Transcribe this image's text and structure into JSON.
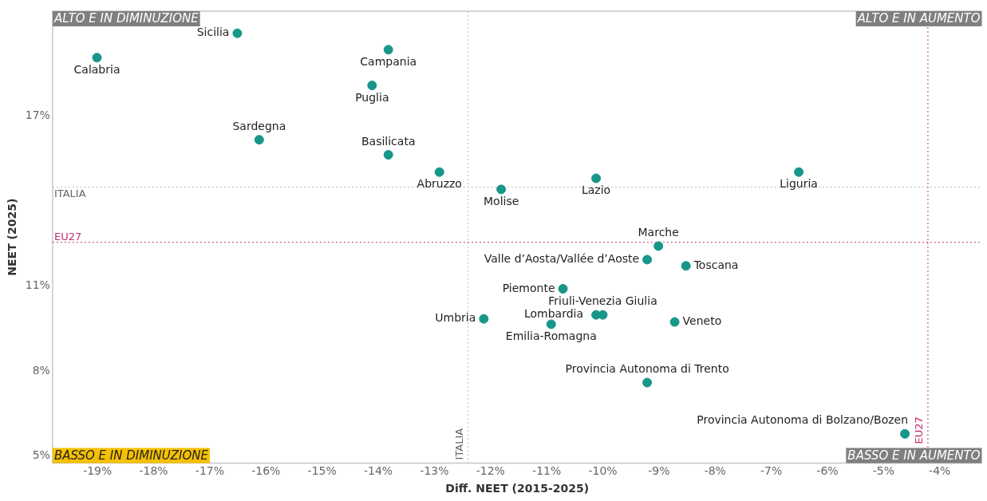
{
  "chart_data": {
    "type": "scatter",
    "xlabel": "Diff. NEET (2015-2025)",
    "ylabel": "NEET (2025)",
    "xlim": [
      -19.8,
      -3.25
    ],
    "ylim": [
      4.75,
      20.7
    ],
    "xticks": [
      {
        "value": -19,
        "label": "-19%"
      },
      {
        "value": -18,
        "label": "-18%"
      },
      {
        "value": -17,
        "label": "-17%"
      },
      {
        "value": -16,
        "label": "-16%"
      },
      {
        "value": -15,
        "label": "-15%"
      },
      {
        "value": -14,
        "label": "-14%"
      },
      {
        "value": -13,
        "label": "-13%"
      },
      {
        "value": -12,
        "label": "-12%"
      },
      {
        "value": -11,
        "label": "-11%"
      },
      {
        "value": -10,
        "label": "-10%"
      },
      {
        "value": -9,
        "label": "-9%"
      },
      {
        "value": -8,
        "label": "-8%"
      },
      {
        "value": -7,
        "label": "-7%"
      },
      {
        "value": -6,
        "label": "-6%"
      },
      {
        "value": -5,
        "label": "-5%"
      },
      {
        "value": -4,
        "label": "-4%"
      }
    ],
    "yticks": [
      {
        "value": 5,
        "label": "5%"
      },
      {
        "value": 8,
        "label": "8%"
      },
      {
        "value": 11,
        "label": "11%"
      },
      {
        "value": 17,
        "label": "17%"
      }
    ],
    "grid": false,
    "legend": false,
    "marker": "circle",
    "series": [
      {
        "name": "Sicilia",
        "color": "#17968a",
        "x": [
          -16.51
        ],
        "values": [
          19.92
        ]
      },
      {
        "name": "Calabria",
        "color": "#17968a",
        "x": [
          -19.01
        ],
        "values": [
          19.06
        ]
      },
      {
        "name": "Campania",
        "color": "#17968a",
        "x": [
          -13.82
        ],
        "values": [
          19.34
        ]
      },
      {
        "name": "Puglia",
        "color": "#17968a",
        "x": [
          -14.11
        ],
        "values": [
          18.08
        ]
      },
      {
        "name": "Sardegna",
        "color": "#17968a",
        "x": [
          -16.12
        ],
        "values": [
          16.16
        ]
      },
      {
        "name": "Basilicata",
        "color": "#17968a",
        "x": [
          -13.82
        ],
        "values": [
          15.63
        ]
      },
      {
        "name": "Abruzzo",
        "color": "#17968a",
        "x": [
          -12.91
        ],
        "values": [
          15.02
        ]
      },
      {
        "name": "Molise",
        "color": "#17968a",
        "x": [
          -11.81
        ],
        "values": [
          14.41
        ]
      },
      {
        "name": "Lazio",
        "color": "#17968a",
        "x": [
          -10.12
        ],
        "values": [
          14.8
        ]
      },
      {
        "name": "Liguria",
        "color": "#17968a",
        "x": [
          -6.51
        ],
        "values": [
          15.02
        ]
      },
      {
        "name": "Marche",
        "color": "#17968a",
        "x": [
          -9.01
        ],
        "values": [
          12.41
        ]
      },
      {
        "name": "Valle d’Aosta/Vallée d’Aoste",
        "color": "#17968a",
        "x": [
          -9.21
        ],
        "values": [
          11.93
        ]
      },
      {
        "name": "Toscana",
        "color": "#17968a",
        "x": [
          -8.52
        ],
        "values": [
          11.71
        ]
      },
      {
        "name": "Piemonte",
        "color": "#17968a",
        "x": [
          -10.71
        ],
        "values": [
          10.9
        ]
      },
      {
        "name": "Friuli-Venezia Giulia",
        "color": "#17968a",
        "x": [
          -10.0
        ],
        "values": [
          9.98
        ]
      },
      {
        "name": "Lombardia",
        "color": "#17968a",
        "x": [
          -10.12
        ],
        "values": [
          9.98
        ]
      },
      {
        "name": "Veneto",
        "color": "#17968a",
        "x": [
          -8.72
        ],
        "values": [
          9.73
        ]
      },
      {
        "name": "Umbria",
        "color": "#17968a",
        "x": [
          -12.12
        ],
        "values": [
          9.84
        ]
      },
      {
        "name": "Emilia-Romagna",
        "color": "#17968a",
        "x": [
          -10.92
        ],
        "values": [
          9.65
        ]
      },
      {
        "name": "Provincia Autonoma di Trento",
        "color": "#17968a",
        "x": [
          -9.21
        ],
        "values": [
          7.59
        ]
      },
      {
        "name": "Provincia Autonoma di Bolzano/Bozen",
        "color": "#17968a",
        "x": [
          -4.62
        ],
        "values": [
          5.78
        ]
      }
    ],
    "ref_lines": [
      {
        "axis": "y",
        "value": 14.49,
        "label": "ITALIA",
        "color": "#bbbbbb",
        "line_style": "dotted"
      },
      {
        "axis": "x",
        "value": -12.4,
        "label": "ITALIA",
        "color": "#bbbbbb",
        "line_style": "dotted"
      },
      {
        "axis": "y",
        "value": 12.54,
        "label": "EU27",
        "color": "#c2306e",
        "line_style": "dotted"
      },
      {
        "axis": "x",
        "value": -4.21,
        "label": "EU27",
        "color": "#c2306e",
        "line_style": "dotted"
      }
    ],
    "annotations": [
      "ALTO E IN DIMINUZIONE",
      "ALTO E IN AUMENTO",
      "BASSO E IN DIMINUZIONE",
      "BASSO E IN AUMENTO"
    ]
  }
}
